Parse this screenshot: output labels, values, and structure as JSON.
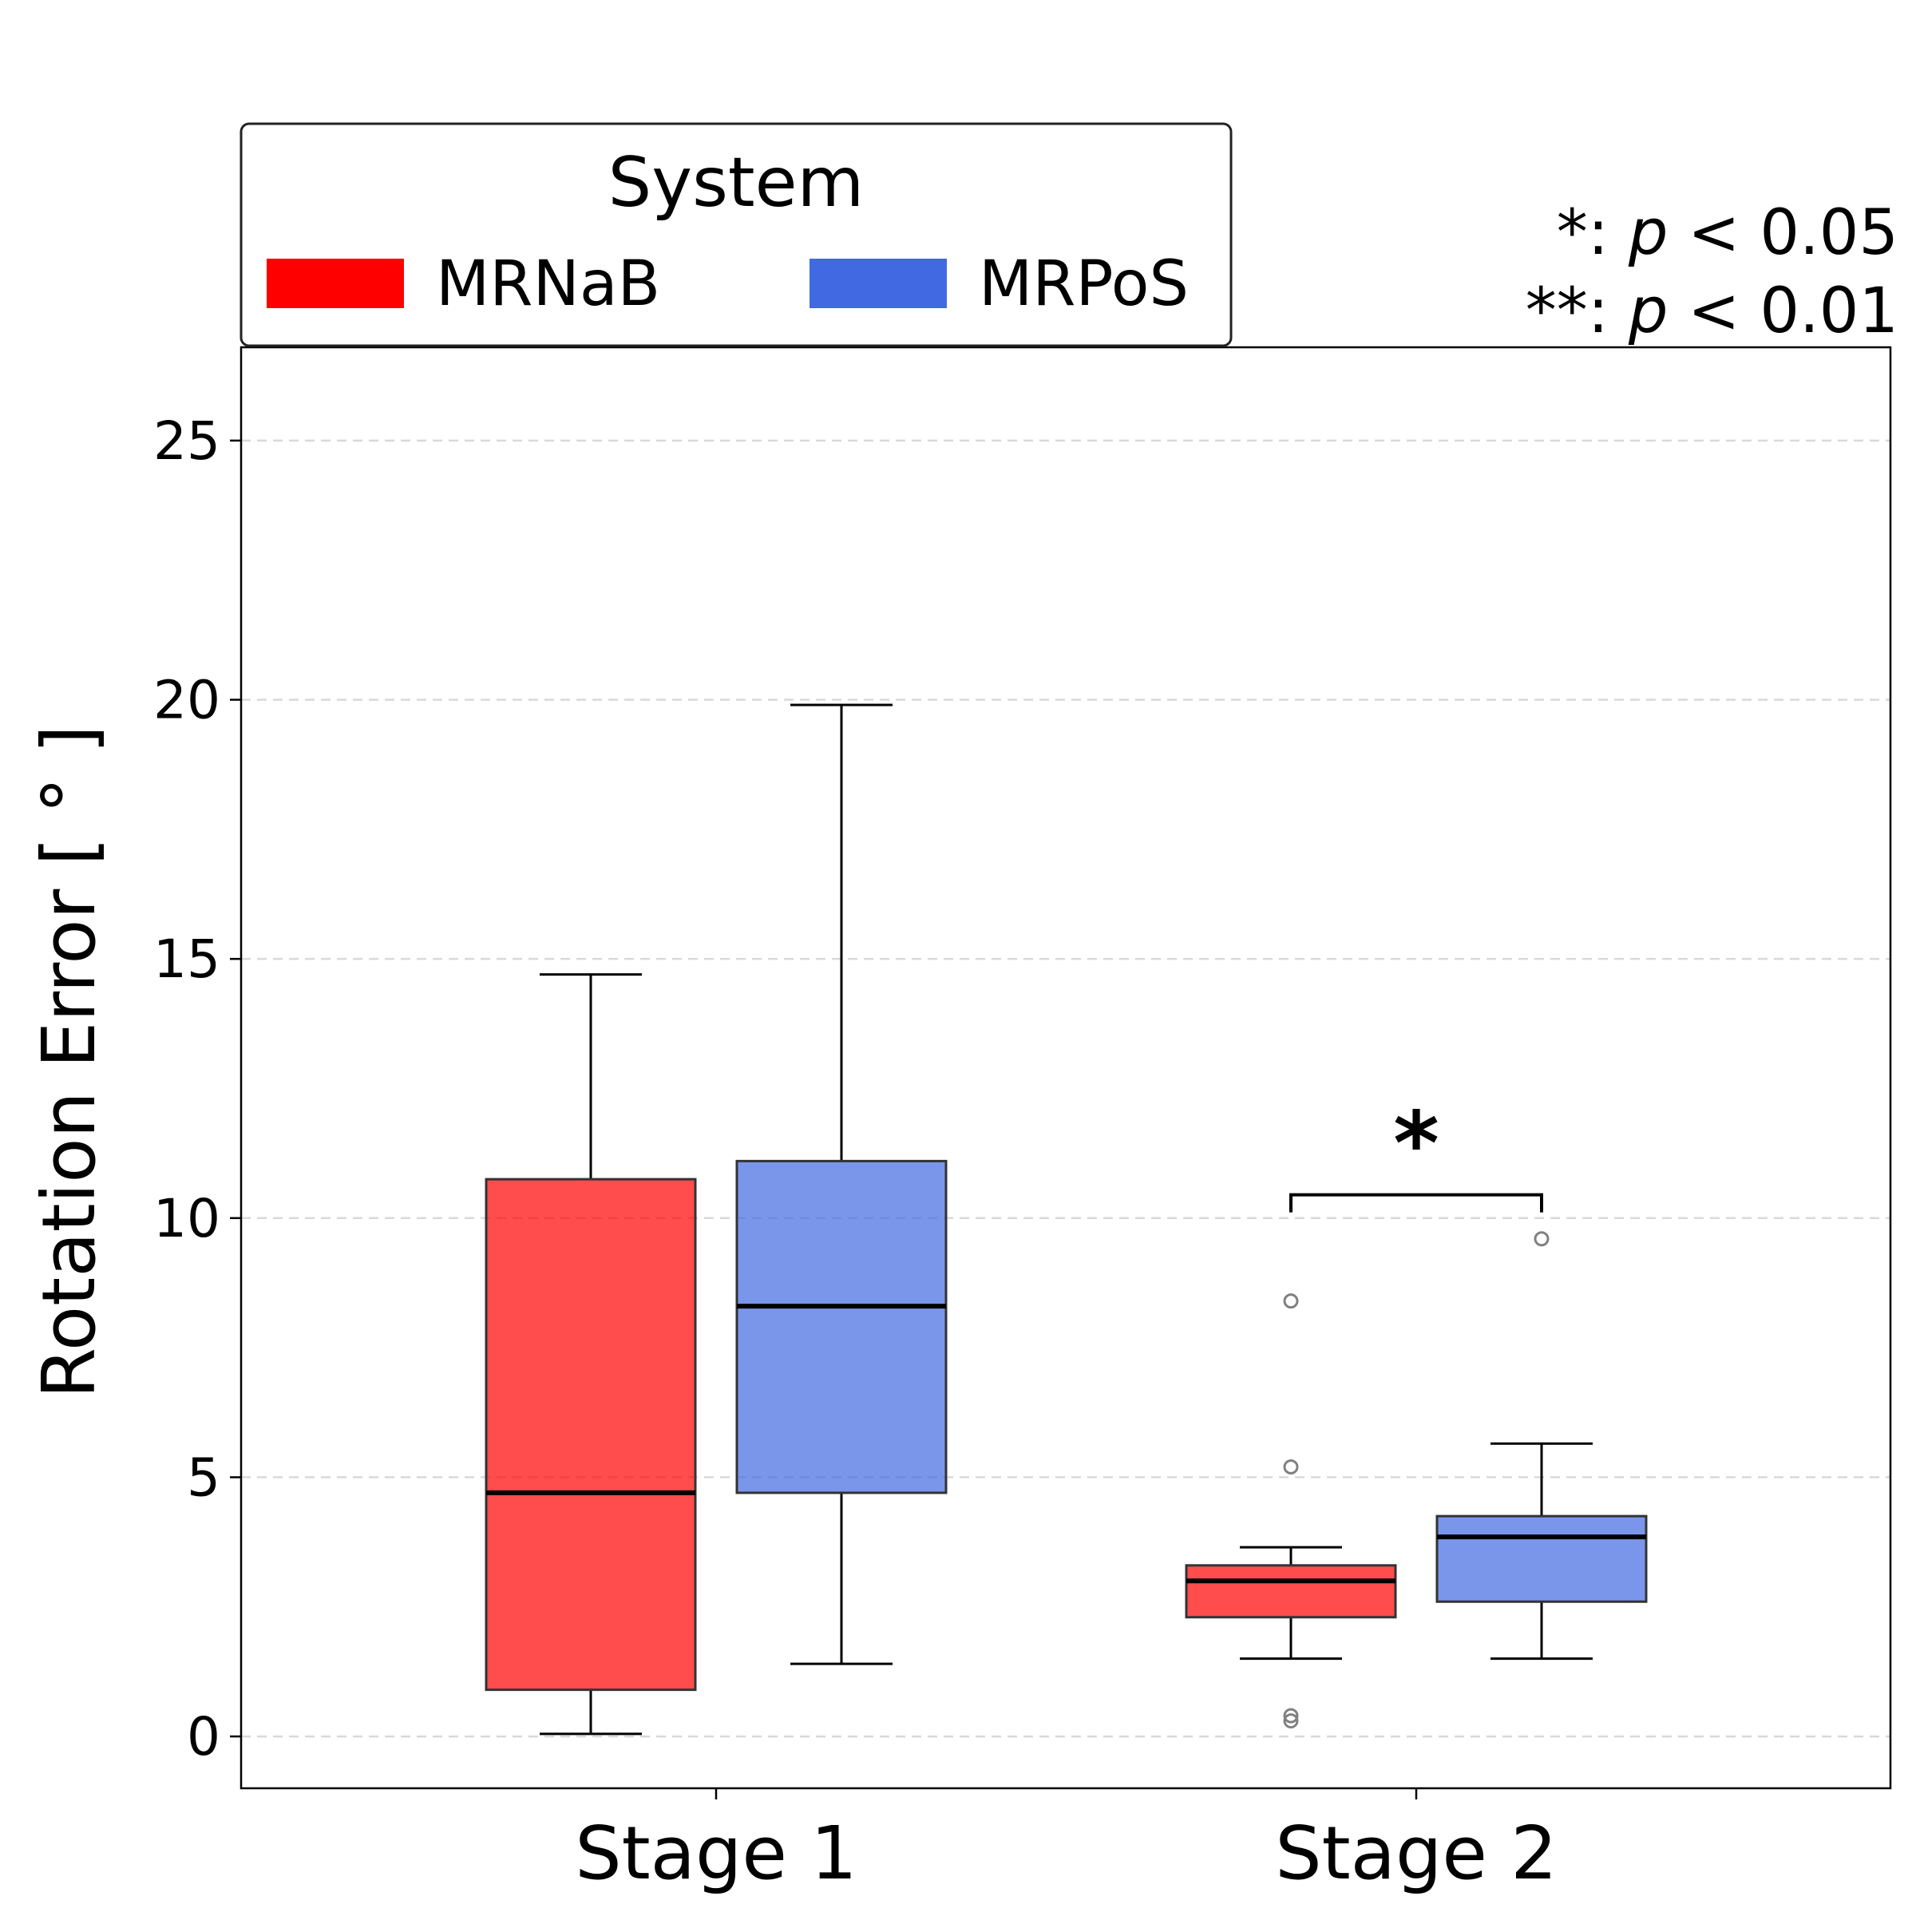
{
  "chart_data": {
    "type": "box",
    "ylabel": "Rotation Error [ ° ]",
    "ylim": [
      -1,
      26.8
    ],
    "yticks": [
      0,
      5,
      10,
      15,
      20,
      25
    ],
    "grid": "y-dashed",
    "categories": [
      "Stage 1",
      "Stage 2"
    ],
    "legend": {
      "title": "System",
      "placement": "top-left above plot",
      "entries": [
        {
          "label": "MRNaB",
          "color": "#ff0000"
        },
        {
          "label": "MRPoS",
          "color": "#4169e1"
        }
      ]
    },
    "series": [
      {
        "name": "MRNaB",
        "color": "#ff0000",
        "boxes": [
          {
            "category": "Stage 1",
            "whisker_low": 0.05,
            "q1": 0.9,
            "median": 4.7,
            "q3": 10.75,
            "whisker_high": 14.7,
            "outliers": []
          },
          {
            "category": "Stage 2",
            "whisker_low": 1.5,
            "q1": 2.3,
            "median": 3.0,
            "q3": 3.3,
            "whisker_high": 3.65,
            "outliers": [
              8.4,
              5.2,
              0.4,
              0.3
            ]
          }
        ]
      },
      {
        "name": "MRPoS",
        "color": "#4169e1",
        "boxes": [
          {
            "category": "Stage 1",
            "whisker_low": 1.4,
            "q1": 4.7,
            "median": 8.3,
            "q3": 11.1,
            "whisker_high": 19.9,
            "outliers": []
          },
          {
            "category": "Stage 2",
            "whisker_low": 1.5,
            "q1": 2.6,
            "median": 3.85,
            "q3": 4.25,
            "whisker_high": 5.65,
            "outliers": [
              9.6
            ]
          }
        ]
      }
    ],
    "significance": [
      {
        "category": "Stage 2",
        "marker": "*",
        "bracket_y": 10.45
      }
    ],
    "notes": [
      {
        "stars": "*:",
        "p_text": "p",
        "relation": "< 0.05"
      },
      {
        "stars": "**:",
        "p_text": "p",
        "relation": "< 0.01"
      }
    ]
  }
}
